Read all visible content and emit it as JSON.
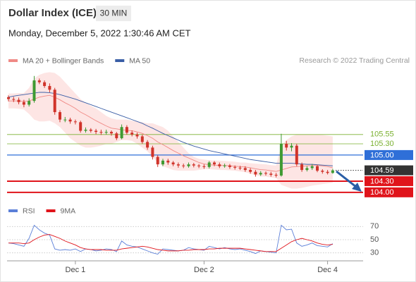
{
  "chart_data": {
    "type": "candlestick",
    "title": "Dollar Index (ICE)",
    "interval": "30 MIN",
    "subtitle": "Monday, December 5, 2022 1:30:46 AM CET",
    "credit": "Research © 2022 Trading Central",
    "categories": [
      null,
      null,
      null,
      null,
      null,
      null,
      null,
      null,
      null,
      null,
      null,
      null,
      null,
      "Dec 1",
      null,
      null,
      null,
      null,
      null,
      null,
      null,
      null,
      null,
      null,
      null,
      null,
      null,
      null,
      null,
      null,
      null,
      null,
      null,
      null,
      null,
      null,
      null,
      null,
      "Dec 2",
      null,
      null,
      null,
      null,
      null,
      null,
      null,
      null,
      null,
      null,
      null,
      null,
      null,
      null,
      null,
      null,
      null,
      null,
      null,
      null,
      null,
      null,
      null,
      "Dec 4",
      null
    ],
    "open": [
      106.55,
      106.5,
      106.48,
      106.42,
      106.35,
      106.45,
      107.0,
      106.95,
      106.85,
      106.75,
      106.15,
      105.95,
      105.95,
      105.9,
      105.88,
      105.65,
      105.68,
      105.65,
      105.62,
      105.6,
      105.62,
      105.58,
      105.45,
      105.75,
      105.6,
      105.55,
      105.5,
      105.35,
      105.2,
      104.95,
      104.75,
      104.85,
      104.8,
      104.75,
      104.72,
      104.7,
      104.75,
      104.72,
      104.7,
      104.68,
      104.8,
      104.75,
      104.7,
      104.72,
      104.68,
      104.66,
      104.65,
      104.6,
      104.55,
      104.48,
      104.52,
      104.5,
      104.47,
      104.45,
      105.3,
      105.2,
      105.25,
      104.75,
      104.6,
      104.65,
      104.7,
      104.58,
      104.55,
      104.52
    ],
    "high": [
      106.6,
      106.56,
      106.54,
      106.48,
      106.52,
      107.12,
      107.05,
      107.0,
      106.92,
      106.8,
      106.2,
      106.02,
      106.0,
      105.95,
      105.92,
      105.74,
      105.72,
      105.7,
      105.68,
      105.68,
      105.66,
      105.62,
      105.82,
      105.8,
      105.66,
      105.6,
      105.55,
      105.4,
      105.25,
      105.0,
      104.9,
      104.9,
      104.84,
      104.8,
      104.77,
      104.8,
      104.79,
      104.76,
      104.75,
      104.84,
      104.84,
      104.8,
      104.77,
      104.76,
      104.72,
      104.71,
      104.7,
      104.65,
      104.6,
      104.57,
      104.56,
      104.55,
      104.52,
      105.57,
      105.38,
      105.32,
      105.3,
      104.8,
      104.7,
      104.76,
      104.74,
      104.62,
      104.6,
      104.63
    ],
    "low": [
      106.44,
      106.42,
      106.36,
      106.28,
      106.3,
      106.4,
      106.9,
      106.8,
      106.68,
      106.08,
      105.88,
      105.88,
      105.84,
      105.82,
      105.6,
      105.6,
      105.6,
      105.56,
      105.54,
      105.55,
      105.52,
      105.4,
      105.42,
      105.55,
      105.5,
      105.44,
      105.3,
      105.14,
      104.88,
      104.68,
      104.7,
      104.74,
      104.7,
      104.66,
      104.65,
      104.66,
      104.67,
      104.65,
      104.63,
      104.64,
      104.7,
      104.65,
      104.66,
      104.63,
      104.61,
      104.6,
      104.55,
      104.5,
      104.42,
      104.44,
      104.45,
      104.42,
      104.4,
      104.42,
      105.12,
      105.1,
      104.7,
      104.55,
      104.56,
      104.6,
      104.54,
      104.5,
      104.48,
      104.5
    ],
    "close": [
      106.5,
      106.48,
      106.42,
      106.35,
      106.45,
      107.0,
      106.95,
      106.85,
      106.75,
      106.15,
      105.95,
      105.95,
      105.9,
      105.88,
      105.65,
      105.68,
      105.65,
      105.62,
      105.6,
      105.62,
      105.58,
      105.45,
      105.75,
      105.6,
      105.55,
      105.5,
      105.35,
      105.2,
      104.95,
      104.75,
      104.85,
      104.8,
      104.75,
      104.72,
      104.7,
      104.75,
      104.72,
      104.7,
      104.68,
      104.8,
      104.75,
      104.7,
      104.72,
      104.68,
      104.66,
      104.65,
      104.6,
      104.55,
      104.48,
      104.52,
      104.5,
      104.47,
      104.45,
      105.3,
      105.2,
      105.25,
      104.75,
      104.6,
      104.65,
      104.7,
      104.58,
      104.55,
      104.52,
      104.59
    ],
    "up_color": "#3f9a32",
    "down_color": "#d0332a",
    "ylim": [
      103.77,
      107.36
    ],
    "levels": [
      {
        "value": 105.55,
        "label": "105.55",
        "kind": "resistance",
        "color": "#7ab030"
      },
      {
        "value": 105.3,
        "label": "105.30",
        "kind": "resistance",
        "color": "#7ab030"
      },
      {
        "value": 105.0,
        "label": "105.00",
        "kind": "pivot",
        "color": "#2f6fd8"
      },
      {
        "value": 104.59,
        "label": "104.59",
        "kind": "last",
        "color": "#333333"
      },
      {
        "value": 104.3,
        "label": "104.30",
        "kind": "support",
        "color": "#e0141b"
      },
      {
        "value": 104.0,
        "label": "104.00",
        "kind": "support",
        "color": "#e0141b"
      }
    ],
    "overlays": [
      {
        "name": "MA 20 + Bollinger Bands",
        "color": "#f08a86",
        "band_color": "#fde0df",
        "values": [
          106.45,
          106.45,
          106.45,
          106.44,
          106.45,
          106.5,
          106.55,
          106.58,
          106.6,
          106.55,
          106.48,
          106.4,
          106.33,
          106.25,
          106.15,
          106.08,
          106.0,
          105.92,
          105.85,
          105.78,
          105.72,
          105.7,
          105.68,
          105.66,
          105.65,
          105.62,
          105.58,
          105.52,
          105.45,
          105.35,
          105.28,
          105.2,
          105.12,
          105.05,
          104.98,
          104.92,
          104.86,
          104.8,
          104.76,
          104.74,
          104.73,
          104.72,
          104.72,
          104.71,
          104.7,
          104.69,
          104.68,
          104.66,
          104.63,
          104.61,
          104.6,
          104.58,
          104.56,
          104.6,
          104.64,
          104.68,
          104.69,
          104.7,
          104.71,
          104.72,
          104.72,
          104.71,
          104.69,
          104.66
        ],
        "upper": [
          106.65,
          106.65,
          106.66,
          106.66,
          106.8,
          107.05,
          107.15,
          107.2,
          107.22,
          107.2,
          107.1,
          106.95,
          106.8,
          106.65,
          106.5,
          106.4,
          106.32,
          106.25,
          106.15,
          106.05,
          105.98,
          105.95,
          105.95,
          105.95,
          105.92,
          105.9,
          105.88,
          105.85,
          105.85,
          105.8,
          105.75,
          105.65,
          105.5,
          105.35,
          105.2,
          105.05,
          104.95,
          104.9,
          104.88,
          104.86,
          104.85,
          104.85,
          104.84,
          104.83,
          104.82,
          104.8,
          104.8,
          104.78,
          104.77,
          104.76,
          104.75,
          104.73,
          104.72,
          105.25,
          105.4,
          105.5,
          105.55,
          105.55,
          105.55,
          105.55,
          105.55,
          105.54,
          105.52,
          105.5
        ],
        "lower": [
          106.25,
          106.25,
          106.24,
          106.22,
          106.1,
          105.95,
          105.9,
          105.9,
          105.92,
          105.85,
          105.75,
          105.6,
          105.45,
          105.35,
          105.25,
          105.2,
          105.2,
          105.22,
          105.25,
          105.3,
          105.3,
          105.35,
          105.4,
          105.4,
          105.38,
          105.3,
          105.2,
          105.1,
          104.95,
          104.8,
          104.7,
          104.65,
          104.6,
          104.58,
          104.58,
          104.58,
          104.58,
          104.6,
          104.62,
          104.62,
          104.61,
          104.6,
          104.6,
          104.59,
          104.58,
          104.56,
          104.54,
          104.5,
          104.46,
          104.43,
          104.42,
          104.4,
          104.38,
          104.2,
          104.15,
          104.1,
          104.1,
          104.12,
          104.15,
          104.18,
          104.2,
          104.22,
          104.24,
          104.26
        ]
      },
      {
        "name": "MA 50",
        "color": "#3a5ea6",
        "values": [
          106.55,
          106.58,
          106.6,
          106.62,
          106.64,
          106.66,
          106.68,
          106.68,
          106.67,
          106.65,
          106.62,
          106.58,
          106.54,
          106.5,
          106.45,
          106.4,
          106.35,
          106.3,
          106.25,
          106.2,
          106.15,
          106.1,
          106.05,
          106.0,
          105.95,
          105.9,
          105.85,
          105.78,
          105.72,
          105.65,
          105.58,
          105.52,
          105.46,
          105.4,
          105.34,
          105.29,
          105.24,
          105.2,
          105.16,
          105.12,
          105.09,
          105.06,
          105.03,
          105.0,
          104.97,
          104.94,
          104.91,
          104.88,
          104.86,
          104.84,
          104.82,
          104.8,
          104.78,
          104.78,
          104.78,
          104.78,
          104.77,
          104.76,
          104.75,
          104.75,
          104.74,
          104.73,
          104.72,
          104.71
        ]
      }
    ],
    "indicator": {
      "ylim": [
        20,
        80
      ],
      "yticks": [
        30,
        50,
        70
      ],
      "series": [
        {
          "name": "RSI",
          "color": "#5b7fd8",
          "values": [
            45,
            44,
            42,
            40,
            52,
            72,
            65,
            60,
            57,
            36,
            34,
            35,
            34,
            36,
            32,
            36,
            35,
            33,
            34,
            36,
            35,
            32,
            48,
            42,
            40,
            39,
            36,
            33,
            30,
            28,
            36,
            35,
            34,
            33,
            34,
            38,
            36,
            35,
            34,
            40,
            38,
            36,
            38,
            36,
            35,
            36,
            34,
            32,
            29,
            33,
            32,
            31,
            30,
            72,
            65,
            66,
            45,
            40,
            42,
            45,
            41,
            40,
            39,
            44
          ]
        },
        {
          "name": "9MA",
          "color": "#e0141b",
          "values": [
            45,
            45,
            45,
            44,
            45,
            50,
            54,
            57,
            58,
            55,
            52,
            48,
            45,
            42,
            38,
            36,
            35,
            35,
            35,
            34,
            34,
            34,
            36,
            37,
            38,
            39,
            40,
            39,
            37,
            35,
            34,
            33,
            33,
            33,
            34,
            34,
            35,
            35,
            35,
            36,
            36,
            37,
            37,
            37,
            37,
            37,
            36,
            35,
            34,
            33,
            32,
            32,
            32,
            37,
            42,
            47,
            50,
            52,
            50,
            48,
            45,
            43,
            42,
            43
          ]
        }
      ]
    }
  }
}
